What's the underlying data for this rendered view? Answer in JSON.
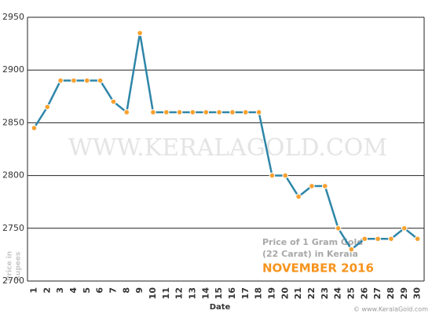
{
  "chart_data": {
    "type": "line",
    "watermark": "WWW.KERALAGOLD.COM",
    "annotation": [
      "Price of 1 Gram Gold",
      "(22 Carat) in Kerala"
    ],
    "subtitle": "NOVEMBER 2016",
    "ylabel": [
      "Price in",
      "Rupees"
    ],
    "xlabel": "Date",
    "credit": "© www.KeralaGold.com",
    "categories": [
      "1",
      "2",
      "3",
      "4",
      "5",
      "6",
      "7",
      "8",
      "9",
      "10",
      "11",
      "12",
      "13",
      "14",
      "15",
      "16",
      "17",
      "18",
      "19",
      "20",
      "21",
      "22",
      "23",
      "24",
      "25",
      "26",
      "27",
      "28",
      "29",
      "30"
    ],
    "series": [
      {
        "color": "#2e86a8",
        "marker_color": "#f7a12f",
        "values": [
          2845,
          2865,
          2890,
          2890,
          2890,
          2890,
          2870,
          2860,
          2935,
          2860,
          2860,
          2860,
          2860,
          2860,
          2860,
          2860,
          2860,
          2860,
          2800,
          2800,
          2780,
          2790,
          2790,
          2750,
          2730,
          2740,
          2740,
          2740,
          2750,
          2740
        ]
      }
    ],
    "ylim": [
      2700,
      2950
    ],
    "yticks": [
      2700,
      2750,
      2800,
      2850,
      2900,
      2950
    ],
    "grid": true
  }
}
